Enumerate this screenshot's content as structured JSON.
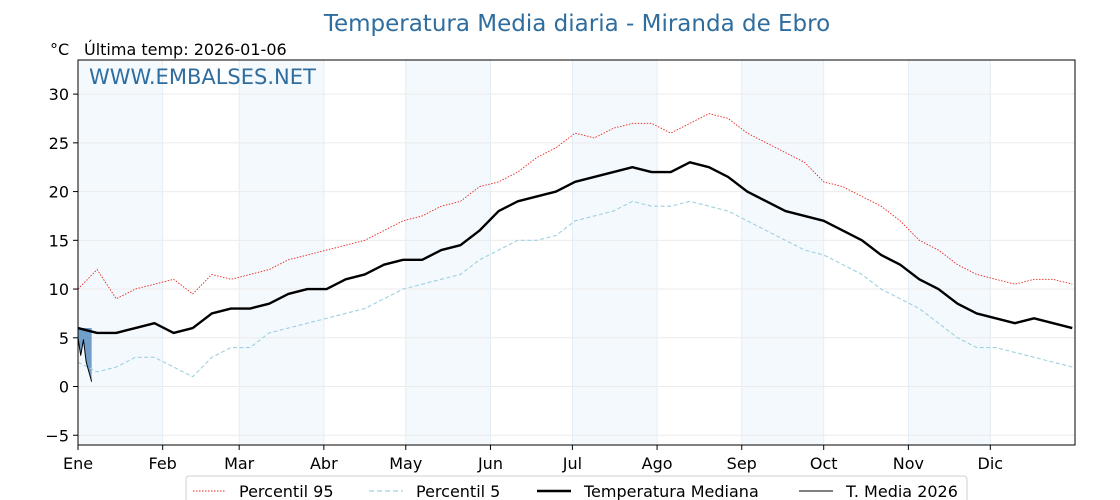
{
  "chart_data": {
    "type": "line",
    "title": "Temperatura Media diaria - Miranda de Ebro",
    "unit_label": "°C",
    "last_temp_label": "Última temp: 2026-01-06",
    "watermark": "WWW.EMBALSES.NET",
    "x_months": [
      "Ene",
      "Feb",
      "Mar",
      "Abr",
      "May",
      "Jun",
      "Jul",
      "Ago",
      "Sep",
      "Oct",
      "Nov",
      "Dic"
    ],
    "month_start_day": [
      1,
      32,
      60,
      91,
      121,
      152,
      182,
      213,
      244,
      274,
      305,
      335
    ],
    "xlim": [
      1,
      366
    ],
    "ylim": [
      -6,
      33.5
    ],
    "y_ticks": [
      -5,
      0,
      5,
      10,
      15,
      20,
      25,
      30
    ],
    "y_tick_labels": [
      "−5",
      "0",
      "5",
      "10",
      "15",
      "20",
      "25",
      "30"
    ],
    "grid": true,
    "alternating_month_shading": true,
    "legend_position": "bottom-center",
    "series": [
      {
        "name": "Percentil 95",
        "style": "dotted",
        "color": "#e8251f",
        "x": [
          1,
          8,
          15,
          22,
          29,
          36,
          43,
          50,
          57,
          64,
          71,
          78,
          85,
          92,
          99,
          106,
          113,
          120,
          127,
          134,
          141,
          148,
          155,
          162,
          169,
          176,
          183,
          190,
          197,
          204,
          211,
          218,
          225,
          232,
          239,
          246,
          253,
          260,
          267,
          274,
          281,
          288,
          295,
          302,
          309,
          316,
          323,
          330,
          337,
          344,
          351,
          358,
          365
        ],
        "y": [
          10,
          12,
          9,
          10,
          10.5,
          11,
          9.5,
          11.5,
          11,
          11.5,
          12,
          13,
          13.5,
          14,
          14.5,
          15,
          16,
          17,
          17.5,
          18.5,
          19,
          20.5,
          21,
          22,
          23.5,
          24.5,
          26,
          25.5,
          26.5,
          27,
          27,
          26,
          27,
          28,
          27.5,
          26,
          25,
          24,
          23,
          21,
          20.5,
          19.5,
          18.5,
          17,
          15,
          14,
          12.5,
          11.5,
          11,
          10.5,
          11,
          11,
          10.5
        ]
      },
      {
        "name": "Percentil 5",
        "style": "dashed",
        "color": "#9fd0df",
        "x": [
          1,
          8,
          15,
          22,
          29,
          36,
          43,
          50,
          57,
          64,
          71,
          78,
          85,
          92,
          99,
          106,
          113,
          120,
          127,
          134,
          141,
          148,
          155,
          162,
          169,
          176,
          183,
          190,
          197,
          204,
          211,
          218,
          225,
          232,
          239,
          246,
          253,
          260,
          267,
          274,
          281,
          288,
          295,
          302,
          309,
          316,
          323,
          330,
          337,
          344,
          351,
          358,
          365
        ],
        "y": [
          2.5,
          1.5,
          2,
          3,
          3,
          2,
          1,
          3,
          4,
          4,
          5.5,
          6,
          6.5,
          7,
          7.5,
          8,
          9,
          10,
          10.5,
          11,
          11.5,
          13,
          14,
          15,
          15,
          15.5,
          17,
          17.5,
          18,
          19,
          18.5,
          18.5,
          19,
          18.5,
          18,
          17,
          16,
          15,
          14,
          13.5,
          12.5,
          11.5,
          10,
          9,
          8,
          6.5,
          5,
          4,
          4,
          3.5,
          3,
          2.5,
          2
        ]
      },
      {
        "name": "Temperatura Mediana",
        "style": "solid-bold",
        "color": "#000000",
        "x": [
          1,
          8,
          15,
          22,
          29,
          36,
          43,
          50,
          57,
          64,
          71,
          78,
          85,
          92,
          99,
          106,
          113,
          120,
          127,
          134,
          141,
          148,
          155,
          162,
          169,
          176,
          183,
          190,
          197,
          204,
          211,
          218,
          225,
          232,
          239,
          246,
          253,
          260,
          267,
          274,
          281,
          288,
          295,
          302,
          309,
          316,
          323,
          330,
          337,
          344,
          351,
          358,
          365
        ],
        "y": [
          6,
          5.5,
          5.5,
          6,
          6.5,
          5.5,
          6,
          7.5,
          8,
          8,
          8.5,
          9.5,
          10,
          10,
          11,
          11.5,
          12.5,
          13,
          13,
          14,
          14.5,
          16,
          18,
          19,
          19.5,
          20,
          21,
          21.5,
          22,
          22.5,
          22,
          22,
          23,
          22.5,
          21.5,
          20,
          19,
          18,
          17.5,
          17,
          16,
          15,
          13.5,
          12.5,
          11,
          10,
          8.5,
          7.5,
          7,
          6.5,
          7,
          6.5,
          6
        ]
      },
      {
        "name": "T. Media 2026",
        "style": "solid-thin",
        "color": "#000000",
        "x": [
          1,
          2,
          3,
          4,
          5,
          6
        ],
        "y": [
          5,
          3.2,
          4.8,
          2.5,
          1.5,
          0.5
        ]
      }
    ]
  }
}
